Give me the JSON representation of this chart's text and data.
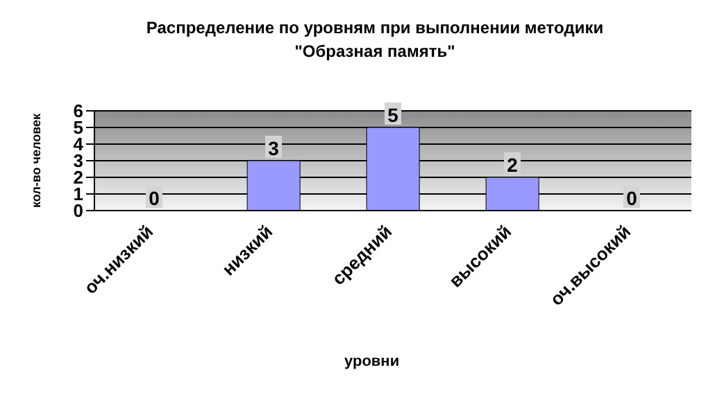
{
  "chart_data": {
    "type": "bar",
    "title": "Распределение по уровням при выполнении методики \"Образная память\"",
    "xlabel": "уровни",
    "ylabel": "кол-во человек",
    "categories": [
      "оч.низкий",
      "низкий",
      "средний",
      "высокий",
      "оч.высокий"
    ],
    "values": [
      0,
      3,
      5,
      2,
      0
    ],
    "color": "#9999ff",
    "ylim": [
      0,
      6
    ],
    "yticks": [
      0,
      1,
      2,
      3,
      4,
      5,
      6
    ],
    "grid": "y",
    "data_labels": true
  }
}
